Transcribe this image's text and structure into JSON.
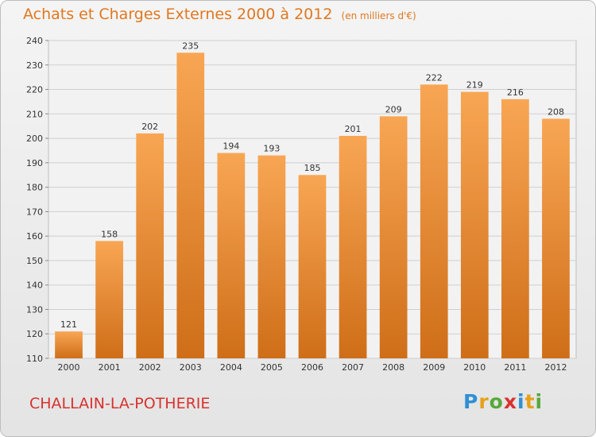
{
  "header": {
    "title": "Achats et Charges Externes 2000 à 2012",
    "unit": "(en milliers d'€)"
  },
  "footer": {
    "commune": "CHALLAIN-LA-POTHERIE",
    "brand_letters": [
      {
        "ch": "P",
        "color": "#2f8fd4"
      },
      {
        "ch": "r",
        "color": "#e6a11a"
      },
      {
        "ch": "o",
        "color": "#57a83a"
      },
      {
        "ch": "x",
        "color": "#d8322e"
      },
      {
        "ch": "i",
        "color": "#2f8fd4"
      },
      {
        "ch": "t",
        "color": "#e6a11a"
      },
      {
        "ch": "i",
        "color": "#57a83a"
      }
    ]
  },
  "colors": {
    "bar_top": "#f8a654",
    "bar_bottom": "#cf6e18",
    "grid": "#cfcfcf",
    "title": "#e07820",
    "commune": "#d8322e"
  },
  "chart_data": {
    "type": "bar",
    "title": "Achats et Charges Externes 2000 à 2012",
    "subtitle": "(en milliers d'€)",
    "xlabel": "",
    "ylabel": "",
    "categories": [
      "2000",
      "2001",
      "2002",
      "2003",
      "2004",
      "2005",
      "2006",
      "2007",
      "2008",
      "2009",
      "2010",
      "2011",
      "2012"
    ],
    "values": [
      121,
      158,
      202,
      235,
      194,
      193,
      185,
      201,
      209,
      222,
      219,
      216,
      208
    ],
    "ylim": [
      110,
      240
    ],
    "yticks": [
      110,
      120,
      130,
      140,
      150,
      160,
      170,
      180,
      190,
      200,
      210,
      220,
      230,
      240
    ],
    "grid": true,
    "legend": "none"
  }
}
